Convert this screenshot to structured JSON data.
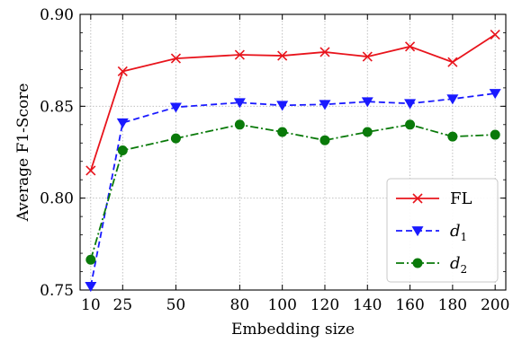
{
  "chart_data": {
    "type": "line",
    "title": "",
    "xlabel": "Embedding size",
    "ylabel": "Average F1-Score",
    "x": [
      10,
      25,
      50,
      80,
      100,
      120,
      140,
      160,
      180,
      200
    ],
    "x_tick_labels": [
      "10",
      "25",
      "50",
      "80",
      "100",
      "120",
      "140",
      "160",
      "180",
      "200"
    ],
    "xlim": [
      5,
      205
    ],
    "ylim": [
      0.75,
      0.9
    ],
    "y_ticks": [
      0.75,
      0.8,
      0.85,
      0.9
    ],
    "y_tick_labels": [
      "0.75",
      "0.80",
      "0.85",
      "0.90"
    ],
    "grid": true,
    "legend_position": "bottom-right",
    "series": [
      {
        "name": "FL",
        "legend_main": "FL",
        "legend_sub": "",
        "color": "#e8141c",
        "dash": "solid",
        "marker": "x",
        "values": [
          0.815,
          0.869,
          0.876,
          0.878,
          0.8775,
          0.8795,
          0.877,
          0.8825,
          0.874,
          0.889
        ]
      },
      {
        "name": "d1",
        "legend_main": "d",
        "legend_sub": "1",
        "color": "#1a1aff",
        "dash": "dashed",
        "marker": "triangle-down",
        "values": [
          0.752,
          0.841,
          0.8495,
          0.852,
          0.8505,
          0.851,
          0.8525,
          0.8515,
          0.854,
          0.857
        ]
      },
      {
        "name": "d2",
        "legend_main": "d",
        "legend_sub": "2",
        "color": "#0a7a0a",
        "dash": "dashdot",
        "marker": "circle",
        "values": [
          0.7665,
          0.826,
          0.8325,
          0.84,
          0.836,
          0.8315,
          0.836,
          0.84,
          0.8335,
          0.8345
        ]
      }
    ]
  }
}
